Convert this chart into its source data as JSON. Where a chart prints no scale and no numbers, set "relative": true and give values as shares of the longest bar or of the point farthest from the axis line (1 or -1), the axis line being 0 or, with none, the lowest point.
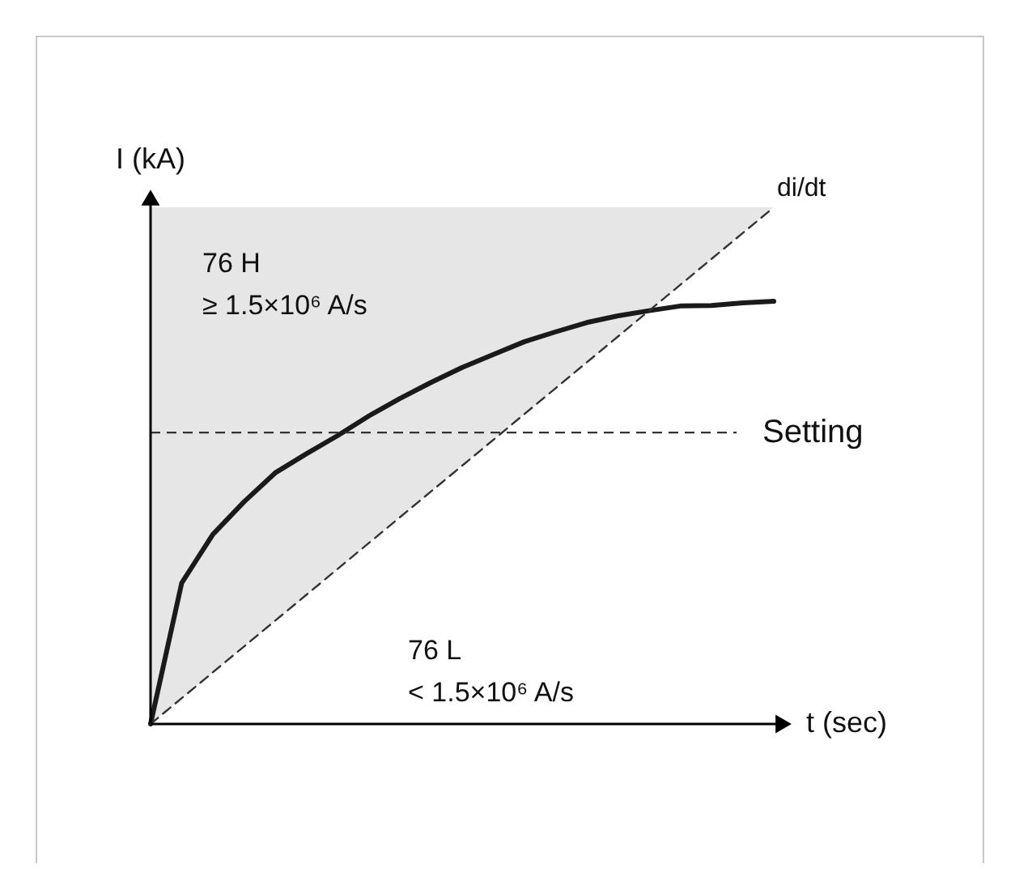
{
  "chart_data": {
    "type": "line",
    "relative": true,
    "xlabel": "t (sec)",
    "ylabel": "I (kA)",
    "categories": [
      null,
      null,
      null,
      null,
      null,
      null,
      null,
      null,
      null,
      null,
      null,
      null,
      null,
      null,
      null,
      null,
      null,
      null,
      null,
      null,
      null
    ],
    "series": [
      {
        "color": "#1a1a1a",
        "line_style": "solid",
        "values": [
          0,
          0.273,
          0.367,
          0.43,
          0.486,
          0.523,
          0.558,
          0.596,
          0.63,
          0.661,
          0.69,
          0.715,
          0.74,
          0.759,
          0.777,
          0.79,
          0.8,
          0.809,
          0.81,
          0.815,
          0.818
        ]
      },
      {
        "name": "di/dt",
        "color": "#333333",
        "line_style": "dashed",
        "values": [
          0,
          0.05,
          0.1,
          0.15,
          0.2,
          0.25,
          0.3,
          0.35,
          0.4,
          0.45,
          0.5,
          0.55,
          0.6,
          0.65,
          0.7,
          0.75,
          0.8,
          0.85,
          0.9,
          0.95,
          1
        ],
        "lower": [
          0,
          0.05,
          0.1,
          0.15,
          0.2,
          0.25,
          0.3,
          0.35,
          0.4,
          0.45,
          0.5,
          0.55,
          0.6,
          0.65,
          0.7,
          0.75,
          0.8,
          0.85,
          0.9,
          0.95,
          1
        ],
        "upper": [
          1,
          1,
          1,
          1,
          1,
          1,
          1,
          1,
          1,
          1,
          1,
          1,
          1,
          1,
          1,
          1,
          1,
          1,
          1,
          1,
          1
        ]
      }
    ],
    "ref_lines": [
      {
        "axis": "y",
        "value": 0.564,
        "label": "Setting",
        "line_style": "dashed",
        "color": "#333333"
      }
    ],
    "annotations": [
      "76 H",
      "≥ 1.5×10⁶ A/s",
      "76 L",
      "< 1.5×10⁶ A/s"
    ]
  }
}
